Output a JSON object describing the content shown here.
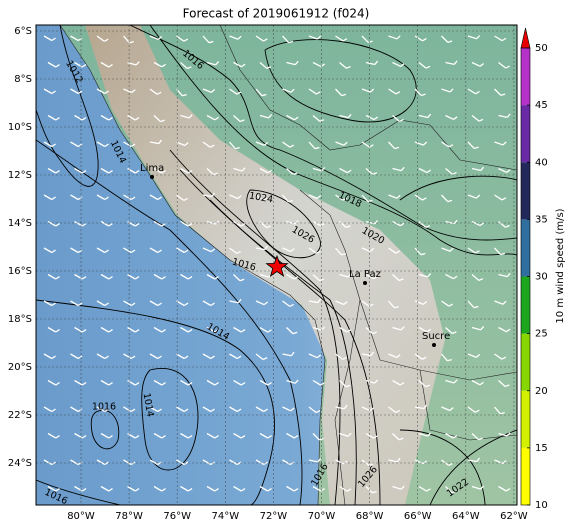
{
  "map": {
    "title": "Forecast of 2019061912 (f024)",
    "lat_labels": [
      "6°S",
      "8°S",
      "10°S",
      "12°S",
      "14°S",
      "16°S",
      "18°S",
      "20°S",
      "22°S",
      "24°S"
    ],
    "lon_labels": [
      "80°W",
      "78°W",
      "76°W",
      "74°W",
      "72°W",
      "70°W",
      "68°W",
      "66°W",
      "64°W",
      "62°W"
    ],
    "contour_labels": [
      "1012",
      "1016",
      "1014",
      "1024",
      "1026",
      "1018",
      "1020",
      "1016",
      "1014",
      "1016",
      "1014",
      "1016",
      "1016",
      "1026",
      "1022"
    ],
    "places": [
      "Lima",
      "La Paz",
      "Sucre"
    ]
  },
  "colorbar": {
    "label": "10 m wind speed (m/s)",
    "lim": [
      10,
      50
    ],
    "ticks": [
      10,
      15,
      20,
      25,
      30,
      35,
      40,
      45,
      50
    ],
    "colors": [
      "#ffff00",
      "#d2f000",
      "#88d600",
      "#1ea51e",
      "#2f6e9e",
      "#22295a",
      "#6a2aa6",
      "#b432c8"
    ],
    "extend_color": "#e80000"
  }
}
